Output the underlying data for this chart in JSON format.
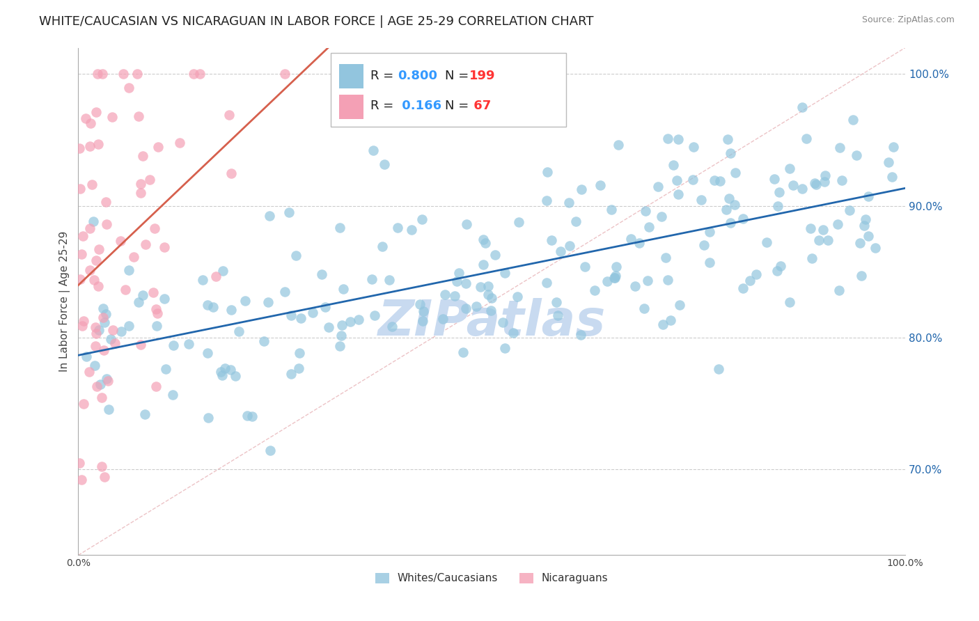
{
  "title": "WHITE/CAUCASIAN VS NICARAGUAN IN LABOR FORCE | AGE 25-29 CORRELATION CHART",
  "source": "Source: ZipAtlas.com",
  "ylabel": "In Labor Force | Age 25-29",
  "xlim": [
    0.0,
    1.0
  ],
  "ylim": [
    0.635,
    1.02
  ],
  "ytick_labels_right": [
    "100.0%",
    "90.0%",
    "80.0%",
    "70.0%"
  ],
  "ytick_values_right": [
    1.0,
    0.9,
    0.8,
    0.7
  ],
  "blue_color": "#92c5de",
  "pink_color": "#f4a0b5",
  "dashed_line_color": "#e8b4b8",
  "blue_line_color": "#2166ac",
  "pink_line_color": "#d6604d",
  "watermark": "ZIPatlas",
  "watermark_color": "#c8daf0",
  "background_color": "#ffffff",
  "title_fontsize": 13,
  "axis_label_fontsize": 11,
  "tick_fontsize": 10,
  "legend_R_color": "#3399ff",
  "legend_N_color": "#ff3333",
  "blue_R": 0.8,
  "blue_N": 199,
  "pink_R": 0.166,
  "pink_N": 67
}
